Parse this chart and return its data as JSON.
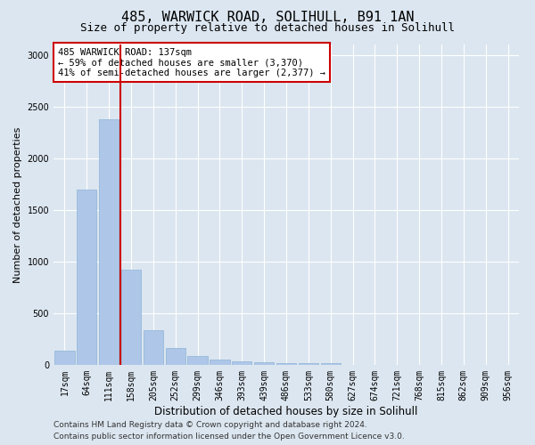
{
  "title": "485, WARWICK ROAD, SOLIHULL, B91 1AN",
  "subtitle": "Size of property relative to detached houses in Solihull",
  "xlabel": "Distribution of detached houses by size in Solihull",
  "ylabel": "Number of detached properties",
  "categories": [
    "17sqm",
    "64sqm",
    "111sqm",
    "158sqm",
    "205sqm",
    "252sqm",
    "299sqm",
    "346sqm",
    "393sqm",
    "439sqm",
    "486sqm",
    "533sqm",
    "580sqm",
    "627sqm",
    "674sqm",
    "721sqm",
    "768sqm",
    "815sqm",
    "862sqm",
    "909sqm",
    "956sqm"
  ],
  "values": [
    140,
    1700,
    2380,
    920,
    340,
    160,
    90,
    50,
    35,
    25,
    20,
    20,
    15,
    0,
    0,
    0,
    0,
    0,
    0,
    0,
    0
  ],
  "bar_color": "#aec6e8",
  "bar_edge_color": "#8cb4d8",
  "vline_color": "#cc0000",
  "vline_x_index": 2,
  "annotation_text": "485 WARWICK ROAD: 137sqm\n← 59% of detached houses are smaller (3,370)\n41% of semi-detached houses are larger (2,377) →",
  "annotation_box_facecolor": "#ffffff",
  "annotation_box_edgecolor": "#cc0000",
  "ylim": [
    0,
    3100
  ],
  "yticks": [
    0,
    500,
    1000,
    1500,
    2000,
    2500,
    3000
  ],
  "bg_color": "#dce6f0",
  "plot_bg_color": "#dce6f0",
  "grid_color": "#ffffff",
  "footer_line1": "Contains HM Land Registry data © Crown copyright and database right 2024.",
  "footer_line2": "Contains public sector information licensed under the Open Government Licence v3.0.",
  "title_fontsize": 11,
  "subtitle_fontsize": 9,
  "xlabel_fontsize": 8.5,
  "ylabel_fontsize": 8,
  "tick_fontsize": 7,
  "annotation_fontsize": 7.5,
  "footer_fontsize": 6.5
}
